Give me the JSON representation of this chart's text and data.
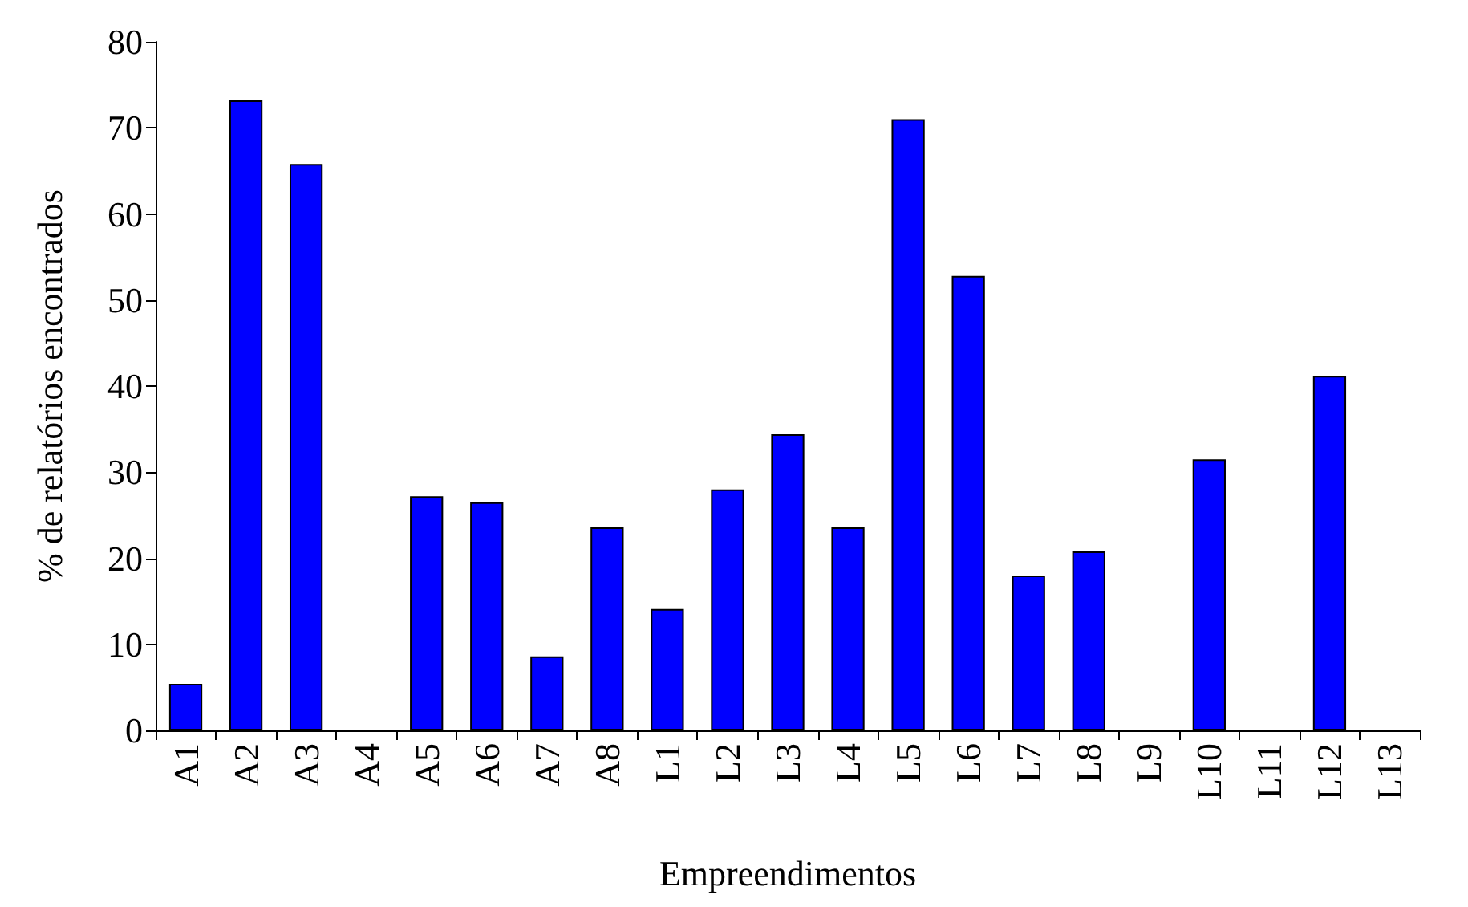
{
  "chart_data": {
    "type": "bar",
    "xlabel": "Empreendimentos",
    "ylabel": "% de relatórios encontrados",
    "categories": [
      "A1",
      "A2",
      "A3",
      "A4",
      "A5",
      "A6",
      "A7",
      "A8",
      "L1",
      "L2",
      "L3",
      "L4",
      "L5",
      "L6",
      "L7",
      "L8",
      "L9",
      "L10",
      "L11",
      "L12",
      "L13"
    ],
    "values": [
      5.4,
      73.2,
      65.8,
      0,
      27.2,
      26.5,
      8.6,
      23.6,
      14.1,
      28,
      34.4,
      23.6,
      71,
      52.8,
      18,
      20.8,
      0,
      31.5,
      0,
      41.2,
      0
    ],
    "color": "#0000ff",
    "ylim": [
      0,
      80
    ],
    "yticks": [
      0,
      10,
      20,
      30,
      40,
      50,
      60,
      70,
      80
    ],
    "grid": false
  }
}
